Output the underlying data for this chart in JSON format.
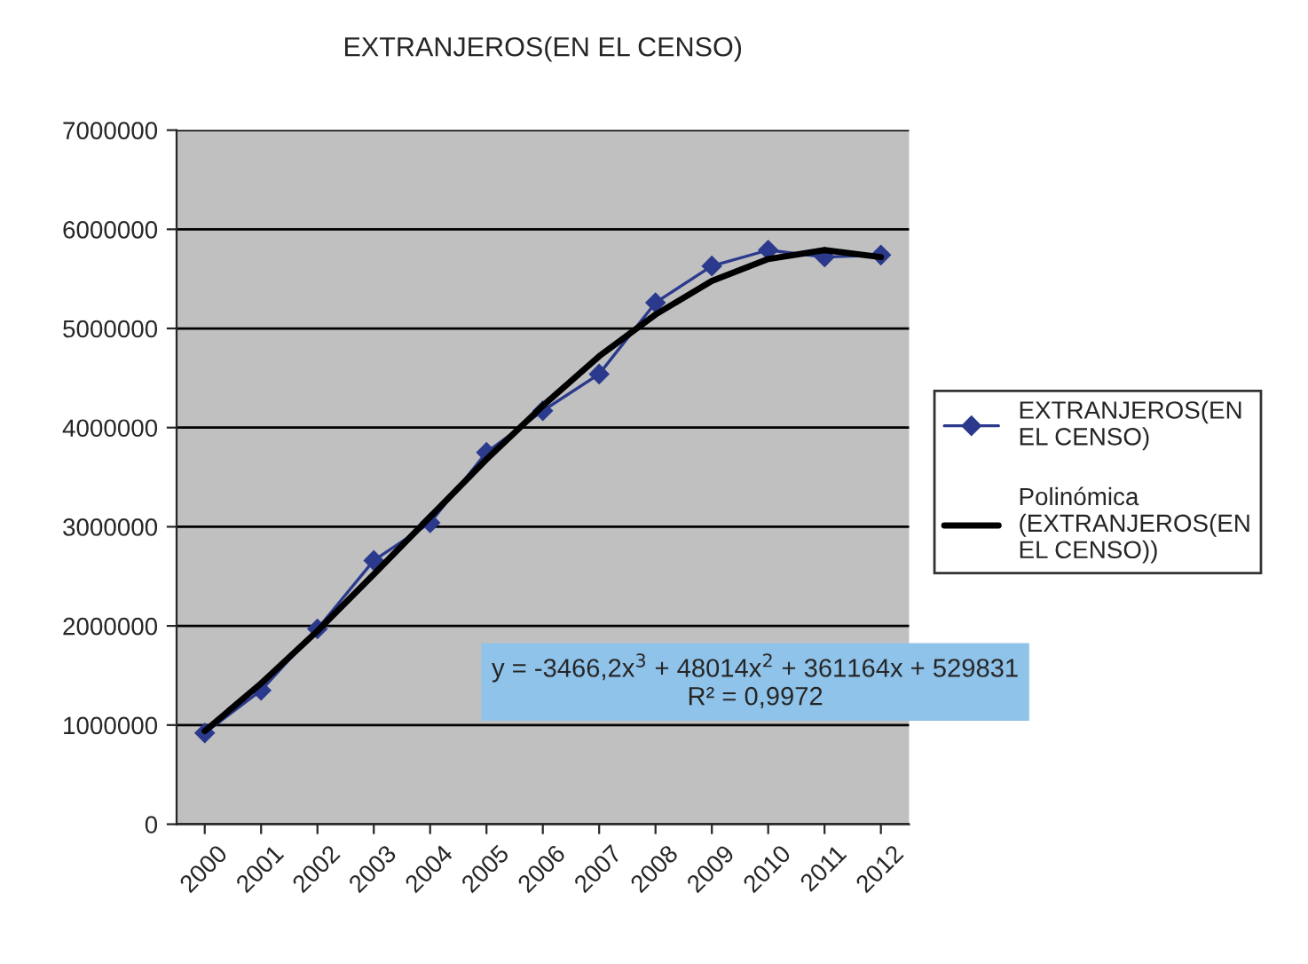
{
  "chart_data": {
    "type": "line",
    "title": "EXTRANJEROS(EN EL CENSO)",
    "categories": [
      "2000",
      "2001",
      "2002",
      "2003",
      "2004",
      "2005",
      "2006",
      "2007",
      "2008",
      "2009",
      "2010",
      "2011",
      "2012"
    ],
    "series": [
      {
        "name": "EXTRANJEROS(EN EL CENSO)",
        "color": "#2b3a8c",
        "marker": "diamond",
        "values": [
          920000,
          1350000,
          1970000,
          2660000,
          3040000,
          3750000,
          4170000,
          4540000,
          5260000,
          5630000,
          5790000,
          5720000,
          5740000
        ]
      },
      {
        "name": "Polinómica (EXTRANJEROS(EN EL CENSO))",
        "color": "#000000",
        "marker": "none",
        "values": [
          940000,
          1420000,
          1950000,
          2520000,
          3100000,
          3680000,
          4220000,
          4720000,
          5140000,
          5480000,
          5700000,
          5790000,
          5720000
        ]
      }
    ],
    "ylim": [
      0,
      7000000
    ],
    "yticks": [
      0,
      1000000,
      2000000,
      3000000,
      4000000,
      5000000,
      6000000,
      7000000
    ],
    "annotations": [
      "y = -3466,2x$^{3}$ + 48014x$^{2}$ + 361164x + 529831\nR² = 0,9972"
    ],
    "grid": "y",
    "legend": "right",
    "line_style": "solid"
  }
}
